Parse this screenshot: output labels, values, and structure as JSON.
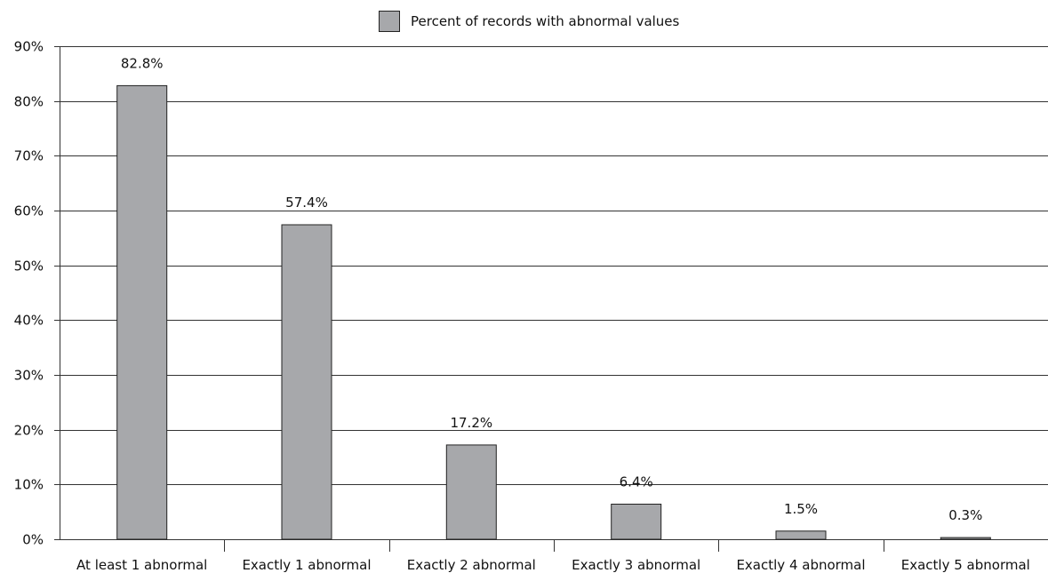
{
  "chart_data": {
    "type": "bar",
    "categories": [
      "At least 1 abnormal",
      "Exactly 1 abnormal",
      "Exactly 2 abnormal",
      "Exactly 3 abnormal",
      "Exactly 4 abnormal",
      "Exactly 5 abnormal"
    ],
    "series": [
      {
        "name": "Percent of records with abnormal values",
        "values": [
          82.8,
          57.4,
          17.2,
          6.4,
          1.5,
          0.3
        ],
        "data_labels": [
          "82.8%",
          "57.4%",
          "17.2%",
          "6.4%",
          "1.5%",
          "0.3%"
        ]
      }
    ],
    "ylim": [
      0,
      90
    ],
    "yticks": [
      0,
      10,
      20,
      30,
      40,
      50,
      60,
      70,
      80,
      90
    ],
    "ytick_labels": [
      "0%",
      "10%",
      "20%",
      "30%",
      "40%",
      "50%",
      "60%",
      "70%",
      "80%",
      "90%"
    ],
    "grid": true,
    "legend_position": "top-center",
    "colors": {
      "bar": "#a7a8ab",
      "bar_stroke": "#222222",
      "grid": "#333333",
      "axis": "#333333"
    },
    "title": "",
    "xlabel": "",
    "ylabel": ""
  }
}
